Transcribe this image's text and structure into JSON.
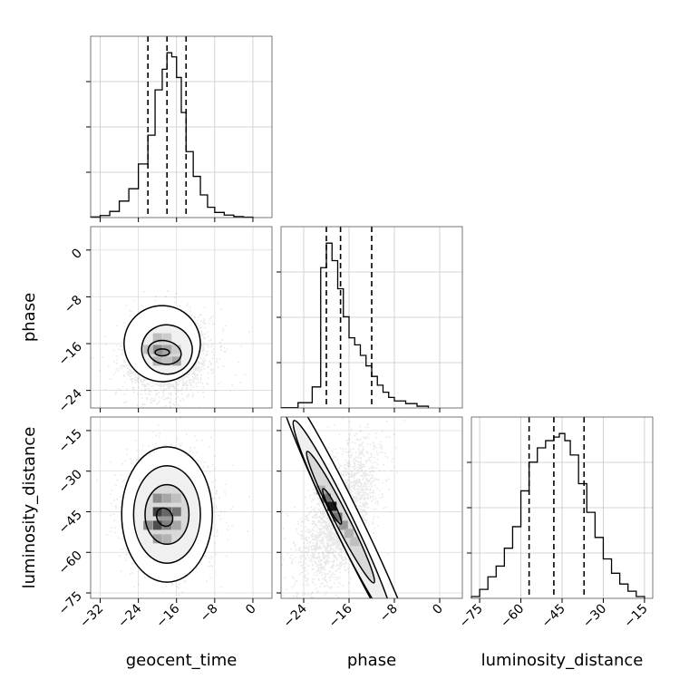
{
  "chart_data": {
    "type": "corner",
    "parameters": [
      "geocent_time",
      "phase",
      "luminosity_distance"
    ],
    "grid": true,
    "quantile_line_style": "dashed",
    "histograms": [
      {
        "parameter": "geocent_time",
        "range": [
          -34,
          4
        ],
        "bin_edges": [
          -34,
          -32,
          -30,
          -28,
          -26,
          -24,
          -22,
          -20.5,
          -19,
          -18,
          -17,
          -16,
          -15,
          -14,
          -12.5,
          -11,
          -9.5,
          -8,
          -6,
          -4,
          -2,
          0
        ],
        "counts": [
          0.3,
          1,
          3,
          8,
          14,
          26,
          40,
          62,
          72,
          80,
          78,
          68,
          51,
          32,
          20,
          11,
          5,
          2.5,
          1.2,
          0.5,
          0.2
        ],
        "quantiles": [
          -22,
          -18,
          -14
        ],
        "xlim": [
          -34,
          4
        ],
        "xticks": [
          -32,
          -24,
          -16,
          -8,
          0
        ],
        "xtick_labels": [
          "−32",
          "−24",
          "−16",
          "−8",
          "0"
        ],
        "show_xtick_labels": false
      },
      {
        "parameter": "phase",
        "range": [
          -28,
          4
        ],
        "bin_edges": [
          -28,
          -25,
          -22.5,
          -21,
          -20,
          -19,
          -18,
          -17,
          -16,
          -15,
          -14,
          -13,
          -12,
          -11,
          -10,
          -9,
          -8,
          -6,
          -4,
          -2
        ],
        "counts": [
          0.2,
          3,
          12,
          80,
          94,
          84,
          68,
          52,
          40,
          36,
          30,
          24,
          18,
          13,
          9,
          6,
          4,
          2.5,
          1
        ],
        "quantiles": [
          -20,
          -17.5,
          -12
        ],
        "xlim": [
          -28,
          4
        ],
        "xticks": [
          -24,
          -16,
          -8,
          0
        ],
        "xtick_labels": [
          "−24",
          "−16",
          "−8",
          "0"
        ],
        "show_xtick_labels": false
      },
      {
        "parameter": "luminosity_distance",
        "range": [
          -78,
          -12
        ],
        "bin_edges": [
          -78,
          -75,
          -72,
          -69,
          -66,
          -63,
          -60,
          -57,
          -54,
          -51,
          -48,
          -46,
          -44,
          -42,
          -39,
          -36,
          -33,
          -30,
          -27,
          -24,
          -21,
          -18,
          -15
        ],
        "counts": [
          1,
          5,
          12,
          18,
          28,
          40,
          60,
          76,
          84,
          88,
          90,
          92,
          88,
          80,
          64,
          48,
          34,
          22,
          14,
          8,
          4,
          1
        ],
        "quantiles": [
          -57,
          -48,
          -37
        ],
        "xlim": [
          -78,
          -12
        ],
        "xticks": [
          -75,
          -60,
          -45,
          -30,
          -15
        ],
        "xtick_labels": [
          "−75",
          "−60",
          "−45",
          "−30",
          "−15"
        ],
        "show_xtick_labels": true
      }
    ],
    "scatter_panels": [
      {
        "x_parameter": "geocent_time",
        "y_parameter": "phase",
        "xlim": [
          -34,
          4
        ],
        "ylim": [
          -27,
          4
        ],
        "yticks": [
          0,
          -8,
          -16,
          -24
        ],
        "ytick_labels": [
          "0",
          "−8",
          "−16",
          "−24"
        ],
        "mode": [
          -18,
          -18
        ],
        "spread": [
          4.5,
          3.5
        ],
        "tilt": 0.1,
        "heat_cells": [
          {
            "x": -22,
            "y": -17,
            "v": 0.25
          },
          {
            "x": -20,
            "y": -17,
            "v": 0.45
          },
          {
            "x": -18,
            "y": -17,
            "v": 0.35
          },
          {
            "x": -16,
            "y": -17,
            "v": 0.2
          },
          {
            "x": -20,
            "y": -15,
            "v": 0.25
          },
          {
            "x": -18,
            "y": -15,
            "v": 0.2
          },
          {
            "x": -20,
            "y": -19,
            "v": 0.3
          },
          {
            "x": -18,
            "y": -19,
            "v": 0.25
          },
          {
            "x": -16,
            "y": -19,
            "v": 0.35
          }
        ],
        "contours": [
          {
            "cx": -19,
            "cy": -16,
            "rx": 8,
            "ry": 6.5,
            "rot": -0.3
          },
          {
            "cx": -18,
            "cy": -17,
            "rx": 5.3,
            "ry": 4.2,
            "rot": -0.25
          },
          {
            "cx": -18.5,
            "cy": -17.5,
            "rx": 3.5,
            "ry": 2.0,
            "rot": -0.2
          },
          {
            "cx": -19,
            "cy": -17.5,
            "rx": 1.5,
            "ry": 0.6,
            "rot": 0
          }
        ]
      },
      {
        "x_parameter": "geocent_time",
        "y_parameter": "luminosity_distance",
        "xlim": [
          -34,
          4
        ],
        "ylim": [
          -77,
          -10
        ],
        "yticks": [
          -15,
          -30,
          -45,
          -60,
          -75
        ],
        "ytick_labels": [
          "−15",
          "−30",
          "−45",
          "−60",
          "−75"
        ],
        "mode": [
          -18,
          -46
        ],
        "spread": [
          4.5,
          11
        ],
        "tilt": 0,
        "heat_cells": [
          {
            "x": -20,
            "y": -40,
            "v": 0.45
          },
          {
            "x": -18,
            "y": -40,
            "v": 0.35
          },
          {
            "x": -20,
            "y": -45,
            "v": 0.75
          },
          {
            "x": -18,
            "y": -45,
            "v": 0.6
          },
          {
            "x": -16,
            "y": -45,
            "v": 0.55
          },
          {
            "x": -22,
            "y": -50,
            "v": 0.45
          },
          {
            "x": -20,
            "y": -50,
            "v": 0.7
          },
          {
            "x": -18,
            "y": -50,
            "v": 0.5
          },
          {
            "x": -16,
            "y": -50,
            "v": 0.35
          },
          {
            "x": -20,
            "y": -55,
            "v": 0.35
          },
          {
            "x": -18,
            "y": -55,
            "v": 0.3
          },
          {
            "x": -16,
            "y": -40,
            "v": 0.25
          }
        ],
        "contours": [
          {
            "cx": -18,
            "cy": -46,
            "rx": 9.5,
            "ry": 25,
            "rot": 0
          },
          {
            "cx": -18,
            "cy": -46,
            "rx": 7,
            "ry": 18,
            "rot": 0
          },
          {
            "cx": -18,
            "cy": -46,
            "rx": 4.6,
            "ry": 11,
            "rot": 0
          },
          {
            "cx": -18.5,
            "cy": -47,
            "rx": 1.6,
            "ry": 3.5,
            "rot": 0.5
          }
        ]
      },
      {
        "x_parameter": "phase",
        "y_parameter": "luminosity_distance",
        "xlim": [
          -28,
          4
        ],
        "ylim": [
          -77,
          -10
        ],
        "yticks": [
          -15,
          -30,
          -45,
          -60,
          -75
        ],
        "ytick_labels": [
          "−15",
          "−30",
          "−45",
          "−60",
          "−75"
        ],
        "mode": [
          -18,
          -47
        ],
        "spread": [
          3.5,
          11
        ],
        "tilt": 2.4,
        "heat_cells": [
          {
            "x": -20,
            "y": -40,
            "v": 0.55
          },
          {
            "x": -19,
            "y": -43,
            "v": 0.9
          },
          {
            "x": -18,
            "y": -47,
            "v": 0.55
          },
          {
            "x": -17,
            "y": -50,
            "v": 0.4
          },
          {
            "x": -16,
            "y": -53,
            "v": 0.3
          },
          {
            "x": -15,
            "y": -56,
            "v": 0.25
          },
          {
            "x": -21,
            "y": -37,
            "v": 0.3
          }
        ],
        "contours": [
          {
            "cx": -16,
            "cy": -50,
            "rx": 29,
            "ry": 5.2,
            "rot": -1.12
          },
          {
            "cx": -17,
            "cy": -49,
            "rx": 20,
            "ry": 3.8,
            "rot": -1.12
          },
          {
            "cx": -17.5,
            "cy": -47,
            "rx": 13,
            "ry": 2.6,
            "rot": -1.1
          },
          {
            "cx": -19,
            "cy": -43,
            "rx": 3.5,
            "ry": 1.2,
            "rot": -1.1
          }
        ]
      }
    ]
  }
}
